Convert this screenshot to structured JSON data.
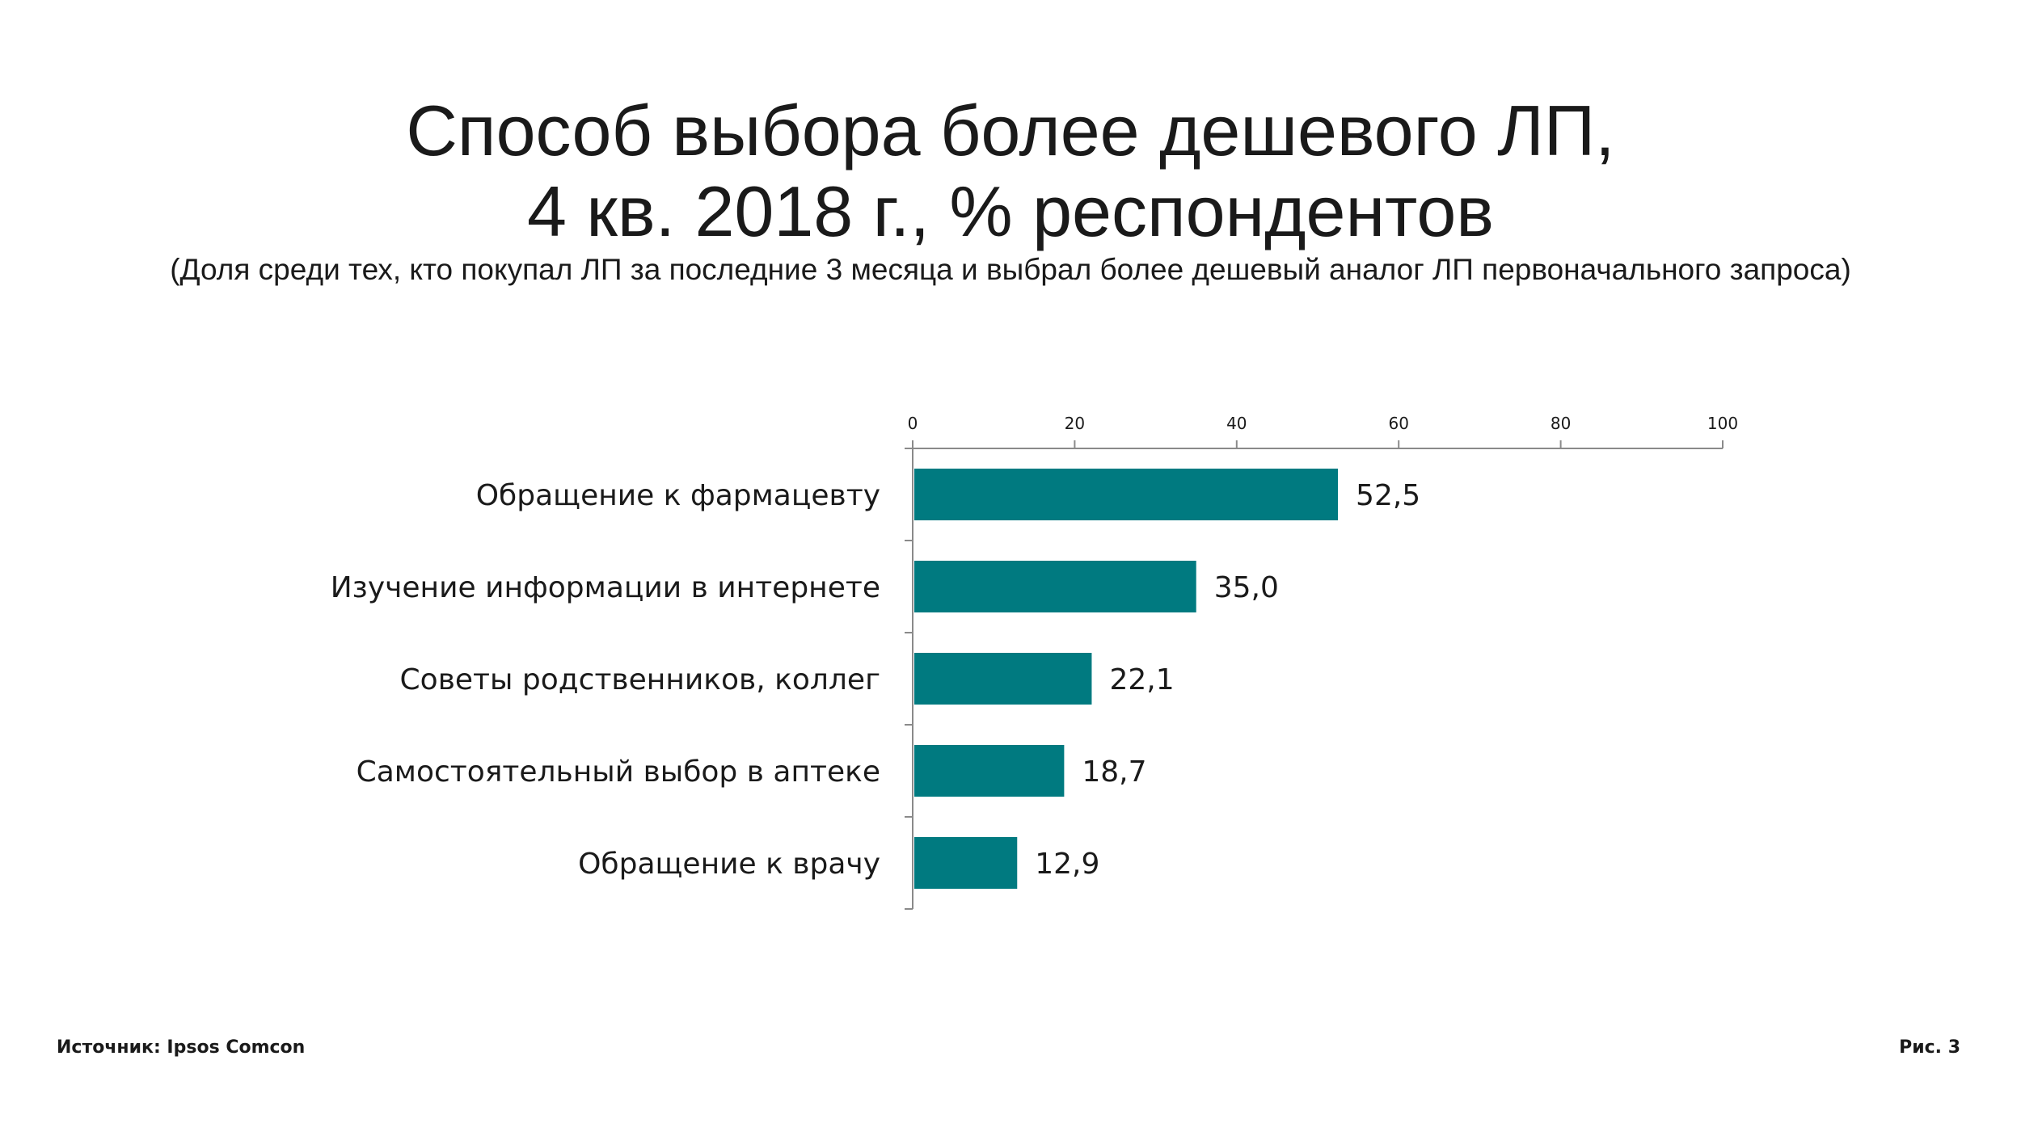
{
  "header": {
    "title_line_1": "Способ выбора более дешевого ЛП,",
    "title_line_2": "4 кв. 2018 г., % респондентов",
    "subtitle": "(Доля среди тех, кто покупал ЛП за последние 3 месяца и выбрал более дешевый аналог ЛП первоначального запроса)"
  },
  "chart_data": {
    "type": "bar",
    "orientation": "horizontal",
    "categories": [
      "Обращение к фармацевту",
      "Изучение информации в интернете",
      "Советы родственников, коллег",
      "Самостоятельный выбор в аптеке",
      "Обращение к врачу"
    ],
    "values": [
      52.5,
      35.0,
      22.1,
      18.7,
      12.9
    ],
    "value_labels": [
      "52,5",
      "35,0",
      "22,1",
      "18,7",
      "12,9"
    ],
    "xlim": [
      0,
      100
    ],
    "x_ticks": [
      0,
      20,
      40,
      60,
      80,
      100
    ],
    "x_tick_labels": [
      "0",
      "20",
      "40",
      "60",
      "80",
      "100"
    ],
    "x_axis_position": "top",
    "grid": false,
    "legend": "none",
    "bar_color": "#007A80"
  },
  "footer": {
    "source": "Источник: Ipsos Comcon",
    "figure": "Рис. 3"
  }
}
